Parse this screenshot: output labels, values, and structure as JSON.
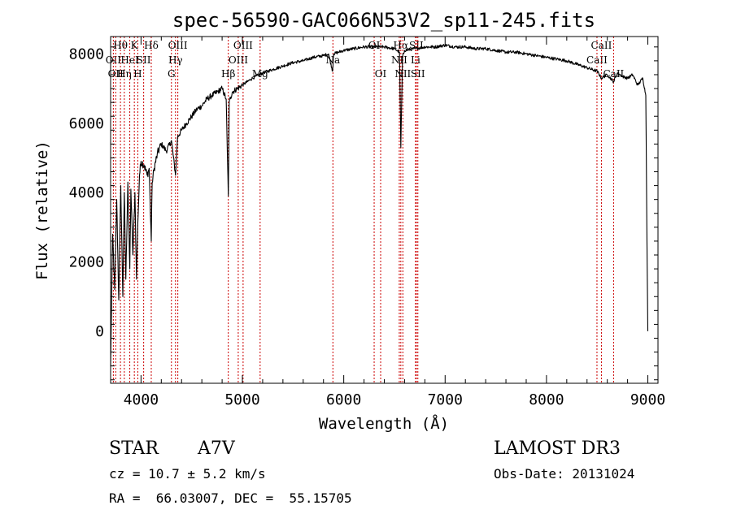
{
  "chart_data": {
    "type": "line",
    "title": "spec-56590-GAC066N53V2_sp11-245.fits",
    "xlabel": "Wavelength (Å)",
    "ylabel": "Flux (relative)",
    "xlim": [
      3700,
      9100
    ],
    "ylim": [
      -1500,
      8500
    ],
    "xticks": [
      4000,
      5000,
      6000,
      7000,
      8000,
      9000
    ],
    "yticks": [
      0,
      2000,
      4000,
      6000,
      8000
    ],
    "series": [
      {
        "name": "spectrum",
        "x": [
          3700,
          3720,
          3740,
          3760,
          3780,
          3800,
          3820,
          3835,
          3850,
          3870,
          3889,
          3900,
          3920,
          3940,
          3955,
          3968,
          3985,
          4000,
          4030,
          4060,
          4080,
          4101,
          4110,
          4130,
          4160,
          4200,
          4250,
          4300,
          4340,
          4360,
          4400,
          4450,
          4500,
          4550,
          4600,
          4650,
          4700,
          4750,
          4800,
          4840,
          4861,
          4870,
          4900,
          4950,
          5000,
          5050,
          5100,
          5200,
          5300,
          5400,
          5500,
          5600,
          5700,
          5800,
          5850,
          5890,
          5900,
          5950,
          6000,
          6100,
          6200,
          6300,
          6400,
          6500,
          6550,
          6563,
          6580,
          6600,
          6700,
          6800,
          6900,
          7000,
          7100,
          7200,
          7300,
          7400,
          7500,
          7600,
          7700,
          7800,
          7900,
          8000,
          8100,
          8200,
          8300,
          8400,
          8500,
          8542,
          8600,
          8662,
          8700,
          8750,
          8800,
          8850,
          8900,
          8950,
          8980,
          8990,
          9000
        ],
        "y": [
          -1000,
          2800,
          1200,
          3800,
          900,
          4200,
          1000,
          4000,
          1500,
          4300,
          1800,
          4100,
          2200,
          4000,
          1500,
          3100,
          4500,
          4900,
          4800,
          4500,
          4700,
          2600,
          4300,
          4700,
          5100,
          5400,
          5200,
          5500,
          4500,
          5600,
          5800,
          6000,
          6200,
          6400,
          6500,
          6700,
          6800,
          6900,
          7000,
          6700,
          3900,
          6600,
          6900,
          7000,
          7100,
          7200,
          7300,
          7450,
          7550,
          7650,
          7750,
          7800,
          7900,
          7950,
          8000,
          7500,
          8000,
          8050,
          8100,
          8150,
          8200,
          8200,
          8200,
          8150,
          8050,
          5300,
          7900,
          8100,
          8150,
          8200,
          8200,
          8250,
          8200,
          8200,
          8150,
          8150,
          8100,
          8050,
          8050,
          8000,
          7950,
          7900,
          7850,
          7800,
          7700,
          7600,
          7500,
          7300,
          7400,
          7200,
          7450,
          7350,
          7300,
          7400,
          7100,
          7300,
          6800,
          3000,
          0
        ]
      }
    ],
    "line_markers": [
      {
        "x": 3727,
        "labels": [
          "OII"
        ],
        "row": 1
      },
      {
        "x": 3750,
        "labels": [
          "OII"
        ],
        "row": 2
      },
      {
        "x": 3797,
        "labels": [
          "Hθ"
        ],
        "row": 0
      },
      {
        "x": 3835,
        "labels": [
          "Hη"
        ],
        "row": 2
      },
      {
        "x": 3889,
        "labels": [
          "HeI"
        ],
        "row": 1
      },
      {
        "x": 3934,
        "labels": [
          "K"
        ],
        "row": 0
      },
      {
        "x": 3968,
        "labels": [
          "H"
        ],
        "row": 2
      },
      {
        "x": 4026,
        "labels": [
          "SII"
        ],
        "row": 1
      },
      {
        "x": 4101,
        "labels": [
          "Hδ"
        ],
        "row": 0
      },
      {
        "x": 4300,
        "labels": [
          "G"
        ],
        "row": 2
      },
      {
        "x": 4340,
        "labels": [
          "Hγ"
        ],
        "row": 1
      },
      {
        "x": 4363,
        "labels": [
          "OIII"
        ],
        "row": 0
      },
      {
        "x": 4861,
        "labels": [
          "Hβ"
        ],
        "row": 2
      },
      {
        "x": 4959,
        "labels": [
          "OIII"
        ],
        "row": 1
      },
      {
        "x": 5007,
        "labels": [
          "OIII"
        ],
        "row": 0
      },
      {
        "x": 5175,
        "labels": [
          "Mg"
        ],
        "row": 2
      },
      {
        "x": 5893,
        "labels": [
          "Na"
        ],
        "row": 1
      },
      {
        "x": 6300,
        "labels": [
          "OI"
        ],
        "row": 0
      },
      {
        "x": 6364,
        "labels": [
          "OI"
        ],
        "row": 2
      },
      {
        "x": 6548,
        "labels": [
          "NII"
        ],
        "row": 1
      },
      {
        "x": 6563,
        "labels": [
          "Hα"
        ],
        "row": 0
      },
      {
        "x": 6583,
        "labels": [
          "NII"
        ],
        "row": 2
      },
      {
        "x": 6708,
        "labels": [
          "Li"
        ],
        "row": 1
      },
      {
        "x": 6716,
        "labels": [
          "SII"
        ],
        "row": 0
      },
      {
        "x": 6731,
        "labels": [
          "SII"
        ],
        "row": 2
      },
      {
        "x": 8498,
        "labels": [
          "CaII"
        ],
        "row": 1
      },
      {
        "x": 8542,
        "labels": [
          "CaII"
        ],
        "row": 0
      },
      {
        "x": 8662,
        "labels": [
          "CaII"
        ],
        "row": 2
      }
    ]
  },
  "info": {
    "class": "STAR",
    "subclass": "A7V",
    "survey": "LAMOST DR3",
    "cz": "cz = 10.7 ± 5.2 km/s",
    "obs_date": "Obs-Date: 20131024",
    "coords": "RA =  66.03007, DEC =  55.15705"
  }
}
